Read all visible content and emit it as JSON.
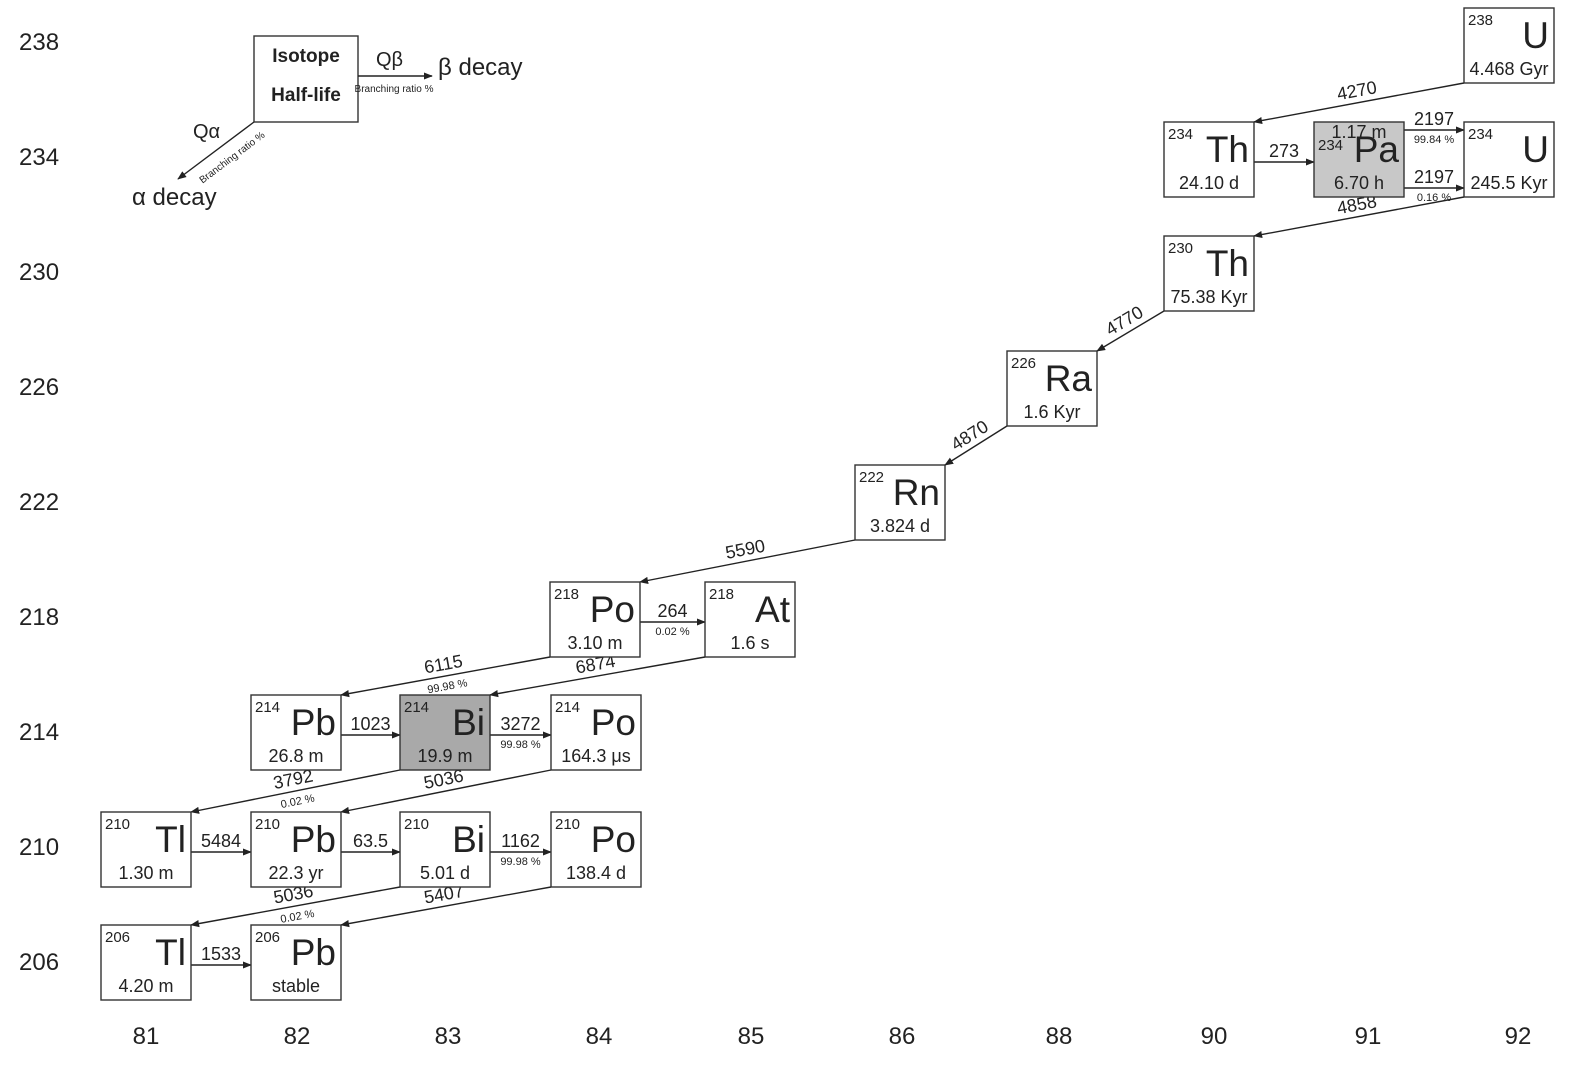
{
  "y_axis": [
    "238",
    "234",
    "230",
    "226",
    "222",
    "218",
    "214",
    "210",
    "206"
  ],
  "x_axis": [
    "81",
    "82",
    "83",
    "84",
    "85",
    "86",
    "88",
    "90",
    "91",
    "92"
  ],
  "legend": {
    "isotope": "Isotope",
    "half_life": "Half-life",
    "q_beta": "Qβ",
    "beta_branching": "Branching ratio %",
    "beta_decay": "β decay",
    "q_alpha": "Qα",
    "alpha_branching": "Branching ratio %",
    "alpha_decay": "α decay"
  },
  "nuclides": [
    {
      "id": "U238",
      "mass": "238",
      "symbol": "U",
      "half_life": "4.468 Gyr",
      "shade": ""
    },
    {
      "id": "Th234",
      "mass": "234",
      "symbol": "Th",
      "half_life": "24.10 d",
      "shade": ""
    },
    {
      "id": "Pa234",
      "mass": "234",
      "symbol": "Pa",
      "half_life": "6.70 h",
      "extra": "1.17 m",
      "shade": "#c8c8c8"
    },
    {
      "id": "U234",
      "mass": "234",
      "symbol": "U",
      "half_life": "245.5 Kyr",
      "shade": ""
    },
    {
      "id": "Th230",
      "mass": "230",
      "symbol": "Th",
      "half_life": "75.38 Kyr",
      "shade": ""
    },
    {
      "id": "Ra226",
      "mass": "226",
      "symbol": "Ra",
      "half_life": "1.6 Kyr",
      "shade": ""
    },
    {
      "id": "Rn222",
      "mass": "222",
      "symbol": "Rn",
      "half_life": "3.824 d",
      "shade": ""
    },
    {
      "id": "Po218",
      "mass": "218",
      "symbol": "Po",
      "half_life": "3.10 m",
      "shade": ""
    },
    {
      "id": "At218",
      "mass": "218",
      "symbol": "At",
      "half_life": "1.6 s",
      "shade": ""
    },
    {
      "id": "Pb214",
      "mass": "214",
      "symbol": "Pb",
      "half_life": "26.8 m",
      "shade": ""
    },
    {
      "id": "Bi214",
      "mass": "214",
      "symbol": "Bi",
      "half_life": "19.9 m",
      "shade": "#a9a9a9"
    },
    {
      "id": "Po214",
      "mass": "214",
      "symbol": "Po",
      "half_life": "164.3 μs",
      "shade": ""
    },
    {
      "id": "Tl210",
      "mass": "210",
      "symbol": "Tl",
      "half_life": "1.30 m",
      "shade": ""
    },
    {
      "id": "Pb210",
      "mass": "210",
      "symbol": "Pb",
      "half_life": "22.3 yr",
      "shade": ""
    },
    {
      "id": "Bi210",
      "mass": "210",
      "symbol": "Bi",
      "half_life": "5.01 d",
      "shade": ""
    },
    {
      "id": "Po210",
      "mass": "210",
      "symbol": "Po",
      "half_life": "138.4 d",
      "shade": ""
    },
    {
      "id": "Tl206",
      "mass": "206",
      "symbol": "Tl",
      "half_life": "4.20 m",
      "shade": ""
    },
    {
      "id": "Pb206",
      "mass": "206",
      "symbol": "Pb",
      "half_life": "stable",
      "shade": ""
    }
  ],
  "decays": [
    {
      "from": "U238",
      "to": "Th234",
      "mode": "alpha",
      "q": "4270",
      "br": ""
    },
    {
      "from": "Th234",
      "to": "Pa234",
      "mode": "beta",
      "q": "273",
      "br": ""
    },
    {
      "from": "Pa234",
      "to": "U234",
      "mode": "beta",
      "q": "2197",
      "br": "99.84 %"
    },
    {
      "from": "Pa234",
      "to": "U234",
      "mode": "beta",
      "q": "2197",
      "br": "0.16 %"
    },
    {
      "from": "U234",
      "to": "Th230",
      "mode": "alpha",
      "q": "4858",
      "br": ""
    },
    {
      "from": "Th230",
      "to": "Ra226",
      "mode": "alpha",
      "q": "4770",
      "br": ""
    },
    {
      "from": "Ra226",
      "to": "Rn222",
      "mode": "alpha",
      "q": "4870",
      "br": ""
    },
    {
      "from": "Rn222",
      "to": "Po218",
      "mode": "alpha",
      "q": "5590",
      "br": ""
    },
    {
      "from": "Po218",
      "to": "At218",
      "mode": "beta",
      "q": "264",
      "br": "0.02 %"
    },
    {
      "from": "Po218",
      "to": "Pb214",
      "mode": "alpha",
      "q": "6115",
      "br": "99.98 %"
    },
    {
      "from": "At218",
      "to": "Bi214",
      "mode": "alpha",
      "q": "6874",
      "br": ""
    },
    {
      "from": "Pb214",
      "to": "Bi214",
      "mode": "beta",
      "q": "1023",
      "br": ""
    },
    {
      "from": "Bi214",
      "to": "Po214",
      "mode": "beta",
      "q": "3272",
      "br": "99.98 %"
    },
    {
      "from": "Bi214",
      "to": "Tl210",
      "mode": "alpha",
      "q": "3792",
      "br": "0.02 %"
    },
    {
      "from": "Po214",
      "to": "Pb210",
      "mode": "alpha",
      "q": "5036",
      "br": ""
    },
    {
      "from": "Tl210",
      "to": "Pb210",
      "mode": "beta",
      "q": "5484",
      "br": ""
    },
    {
      "from": "Pb210",
      "to": "Bi210",
      "mode": "beta",
      "q": "63.5",
      "br": ""
    },
    {
      "from": "Bi210",
      "to": "Po210",
      "mode": "beta",
      "q": "1162",
      "br": "99.98 %"
    },
    {
      "from": "Bi210",
      "to": "Tl206",
      "mode": "alpha",
      "q": "5036",
      "br": "0.02 %"
    },
    {
      "from": "Po210",
      "to": "Pb206",
      "mode": "alpha",
      "q": "5407",
      "br": ""
    },
    {
      "from": "Tl206",
      "to": "Pb206",
      "mode": "beta",
      "q": "1533",
      "br": ""
    }
  ]
}
